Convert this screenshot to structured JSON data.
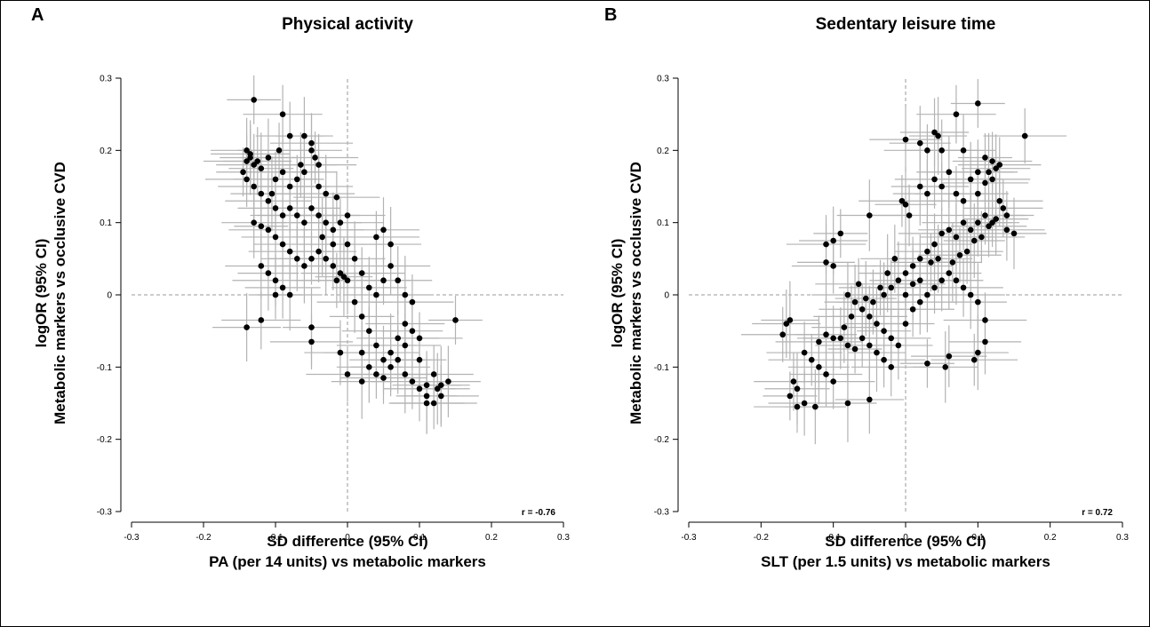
{
  "chart_data": [
    {
      "type": "scatter",
      "panel": "A",
      "title": "Physical activity",
      "xlabel": [
        "SD difference (95% CI)",
        "PA (per 14 units) vs metabolic markers"
      ],
      "ylabel": [
        "logOR (95% CI)",
        "Metabolic markers vs occlusive CVD"
      ],
      "xlim": [
        -0.3,
        0.3
      ],
      "ylim": [
        -0.3,
        0.3
      ],
      "xticks": [
        "-0.3",
        "-0.2",
        "-0.1",
        "0",
        "0.1",
        "0.2",
        "0.3"
      ],
      "yticks": [
        "-0.3",
        "-0.2",
        "-0.1",
        "0",
        "0.1",
        "0.2",
        "0.3"
      ],
      "reference_lines": {
        "x": 0,
        "y": 0,
        "style": "dashed"
      },
      "correlation": "r = -0.76",
      "error_bars": "95% CI (horizontal and vertical)",
      "marker_color": "#000000",
      "error_bar_color": "#b3b3b3",
      "points": [
        [
          -0.13,
          0.27
        ],
        [
          -0.09,
          0.25
        ],
        [
          -0.08,
          0.22
        ],
        [
          -0.06,
          0.22
        ],
        [
          -0.05,
          0.21
        ],
        [
          -0.14,
          0.2
        ],
        [
          -0.135,
          0.19
        ],
        [
          -0.14,
          0.185
        ],
        [
          -0.13,
          0.18
        ],
        [
          -0.12,
          0.175
        ],
        [
          -0.145,
          0.17
        ],
        [
          -0.135,
          0.195
        ],
        [
          -0.125,
          0.185
        ],
        [
          -0.11,
          0.19
        ],
        [
          -0.1,
          0.16
        ],
        [
          -0.09,
          0.17
        ],
        [
          -0.05,
          0.2
        ],
        [
          -0.045,
          0.19
        ],
        [
          -0.04,
          0.18
        ],
        [
          -0.06,
          0.17
        ],
        [
          -0.07,
          0.16
        ],
        [
          -0.08,
          0.15
        ],
        [
          -0.04,
          0.15
        ],
        [
          -0.03,
          0.14
        ],
        [
          -0.14,
          0.16
        ],
        [
          -0.13,
          0.15
        ],
        [
          -0.12,
          0.14
        ],
        [
          -0.11,
          0.13
        ],
        [
          -0.1,
          0.12
        ],
        [
          -0.09,
          0.11
        ],
        [
          -0.08,
          0.12
        ],
        [
          -0.07,
          0.11
        ],
        [
          -0.06,
          0.1
        ],
        [
          -0.05,
          0.12
        ],
        [
          -0.04,
          0.11
        ],
        [
          -0.03,
          0.1
        ],
        [
          -0.02,
          0.09
        ],
        [
          -0.01,
          0.1
        ],
        [
          0.0,
          0.11
        ],
        [
          -0.13,
          0.1
        ],
        [
          -0.12,
          0.095
        ],
        [
          -0.11,
          0.09
        ],
        [
          -0.1,
          0.08
        ],
        [
          -0.09,
          0.07
        ],
        [
          -0.08,
          0.06
        ],
        [
          -0.07,
          0.05
        ],
        [
          -0.06,
          0.04
        ],
        [
          -0.05,
          0.05
        ],
        [
          -0.04,
          0.06
        ],
        [
          -0.03,
          0.05
        ],
        [
          -0.02,
          0.04
        ],
        [
          -0.01,
          0.03
        ],
        [
          0.0,
          0.02
        ],
        [
          -0.005,
          0.025
        ],
        [
          -0.015,
          0.02
        ],
        [
          -0.12,
          0.04
        ],
        [
          -0.11,
          0.03
        ],
        [
          -0.1,
          0.02
        ],
        [
          -0.09,
          0.01
        ],
        [
          -0.08,
          0.0
        ],
        [
          -0.1,
          0.0
        ],
        [
          -0.12,
          -0.035
        ],
        [
          -0.14,
          -0.045
        ],
        [
          -0.05,
          -0.045
        ],
        [
          -0.05,
          -0.065
        ],
        [
          0.0,
          0.07
        ],
        [
          0.01,
          0.05
        ],
        [
          0.02,
          0.03
        ],
        [
          0.03,
          0.01
        ],
        [
          0.04,
          0.0
        ],
        [
          0.05,
          0.02
        ],
        [
          0.06,
          0.04
        ],
        [
          0.07,
          0.02
        ],
        [
          0.08,
          0.0
        ],
        [
          0.09,
          -0.01
        ],
        [
          0.05,
          0.09
        ],
        [
          0.06,
          0.07
        ],
        [
          0.04,
          0.08
        ],
        [
          0.01,
          -0.01
        ],
        [
          0.02,
          -0.03
        ],
        [
          0.03,
          -0.05
        ],
        [
          0.04,
          -0.07
        ],
        [
          0.05,
          -0.09
        ],
        [
          0.06,
          -0.08
        ],
        [
          0.07,
          -0.06
        ],
        [
          0.08,
          -0.07
        ],
        [
          0.09,
          -0.05
        ],
        [
          0.1,
          -0.06
        ],
        [
          0.02,
          -0.08
        ],
        [
          0.03,
          -0.1
        ],
        [
          0.04,
          -0.11
        ],
        [
          0.06,
          -0.1
        ],
        [
          0.07,
          -0.09
        ],
        [
          0.08,
          -0.11
        ],
        [
          0.09,
          -0.12
        ],
        [
          0.1,
          -0.13
        ],
        [
          0.11,
          -0.14
        ],
        [
          0.12,
          -0.15
        ],
        [
          0.13,
          -0.14
        ],
        [
          0.14,
          -0.12
        ],
        [
          0.15,
          -0.035
        ],
        [
          0.12,
          -0.11
        ],
        [
          0.11,
          -0.125
        ],
        [
          0.13,
          -0.125
        ],
        [
          0.0,
          -0.11
        ],
        [
          -0.01,
          -0.08
        ],
        [
          0.02,
          -0.12
        ],
        [
          0.05,
          -0.115
        ],
        [
          0.11,
          -0.15
        ],
        [
          0.125,
          -0.13
        ],
        [
          0.1,
          -0.09
        ],
        [
          0.08,
          -0.04
        ],
        [
          -0.02,
          0.07
        ],
        [
          -0.035,
          0.08
        ],
        [
          -0.095,
          0.2
        ],
        [
          -0.065,
          0.18
        ],
        [
          -0.105,
          0.14
        ],
        [
          -0.015,
          0.135
        ]
      ]
    },
    {
      "type": "scatter",
      "panel": "B",
      "title": "Sedentary leisure time",
      "xlabel": [
        "SD difference (95% CI)",
        "SLT (per 1.5 units) vs metabolic markers"
      ],
      "ylabel": [
        "logOR (95% CI)",
        "Metabolic markers vs occlusive CVD"
      ],
      "xlim": [
        -0.3,
        0.3
      ],
      "ylim": [
        -0.3,
        0.3
      ],
      "xticks": [
        "-0.3",
        "-0.2",
        "-0.1",
        "0",
        "0.1",
        "0.2",
        "0.3"
      ],
      "yticks": [
        "-0.3",
        "-0.2",
        "-0.1",
        "0",
        "0.1",
        "0.2",
        "0.3"
      ],
      "reference_lines": {
        "x": 0,
        "y": 0,
        "style": "dashed"
      },
      "correlation": "r = 0.72",
      "error_bars": "95% CI (horizontal and vertical)",
      "marker_color": "#000000",
      "error_bar_color": "#b3b3b3",
      "points": [
        [
          0.1,
          0.265
        ],
        [
          0.07,
          0.25
        ],
        [
          0.04,
          0.225
        ],
        [
          0.045,
          0.22
        ],
        [
          0.165,
          0.22
        ],
        [
          0.0,
          0.215
        ],
        [
          0.02,
          0.21
        ],
        [
          0.03,
          0.2
        ],
        [
          0.05,
          0.2
        ],
        [
          0.08,
          0.2
        ],
        [
          0.11,
          0.19
        ],
        [
          0.12,
          0.185
        ],
        [
          0.125,
          0.175
        ],
        [
          0.115,
          0.17
        ],
        [
          0.13,
          0.18
        ],
        [
          0.1,
          0.17
        ],
        [
          0.09,
          0.16
        ],
        [
          0.11,
          0.155
        ],
        [
          0.12,
          0.16
        ],
        [
          0.06,
          0.17
        ],
        [
          0.05,
          0.15
        ],
        [
          0.04,
          0.16
        ],
        [
          0.03,
          0.14
        ],
        [
          0.02,
          0.15
        ],
        [
          0.07,
          0.14
        ],
        [
          0.08,
          0.13
        ],
        [
          0.1,
          0.14
        ],
        [
          0.13,
          0.13
        ],
        [
          0.14,
          0.09
        ],
        [
          0.15,
          0.085
        ],
        [
          0.12,
          0.1
        ],
        [
          0.11,
          0.11
        ],
        [
          0.1,
          0.1
        ],
        [
          0.09,
          0.09
        ],
        [
          0.08,
          0.1
        ],
        [
          0.07,
          0.08
        ],
        [
          0.06,
          0.09
        ],
        [
          0.05,
          0.085
        ],
        [
          0.04,
          0.07
        ],
        [
          0.03,
          0.06
        ],
        [
          0.02,
          0.05
        ],
        [
          0.01,
          0.04
        ],
        [
          0.0,
          0.03
        ],
        [
          -0.01,
          0.02
        ],
        [
          -0.02,
          0.01
        ],
        [
          -0.03,
          0.0
        ],
        [
          0.0,
          0.125
        ],
        [
          -0.005,
          0.13
        ],
        [
          0.005,
          0.11
        ],
        [
          -0.05,
          0.11
        ],
        [
          -0.09,
          0.085
        ],
        [
          -0.11,
          0.07
        ],
        [
          -0.1,
          0.075
        ],
        [
          -0.11,
          0.045
        ],
        [
          -0.1,
          0.04
        ],
        [
          -0.08,
          0.0
        ],
        [
          -0.07,
          -0.01
        ],
        [
          -0.06,
          -0.02
        ],
        [
          -0.05,
          -0.03
        ],
        [
          -0.04,
          -0.04
        ],
        [
          -0.03,
          -0.05
        ],
        [
          -0.02,
          -0.06
        ],
        [
          -0.01,
          -0.07
        ],
        [
          0.0,
          -0.04
        ],
        [
          0.01,
          -0.02
        ],
        [
          0.02,
          -0.01
        ],
        [
          0.03,
          0.0
        ],
        [
          0.04,
          0.01
        ],
        [
          0.05,
          0.02
        ],
        [
          0.06,
          0.03
        ],
        [
          0.07,
          0.02
        ],
        [
          0.08,
          0.01
        ],
        [
          0.09,
          0.0
        ],
        [
          0.1,
          -0.01
        ],
        [
          0.11,
          -0.035
        ],
        [
          0.11,
          -0.065
        ],
        [
          0.1,
          -0.08
        ],
        [
          0.095,
          -0.09
        ],
        [
          0.06,
          -0.085
        ],
        [
          0.055,
          -0.1
        ],
        [
          0.03,
          -0.095
        ],
        [
          -0.02,
          -0.1
        ],
        [
          -0.05,
          -0.145
        ],
        [
          -0.08,
          -0.15
        ],
        [
          -0.1,
          -0.12
        ],
        [
          -0.11,
          -0.11
        ],
        [
          -0.12,
          -0.1
        ],
        [
          -0.13,
          -0.09
        ],
        [
          -0.14,
          -0.08
        ],
        [
          -0.15,
          -0.13
        ],
        [
          -0.16,
          -0.14
        ],
        [
          -0.155,
          -0.12
        ],
        [
          -0.165,
          -0.04
        ],
        [
          -0.16,
          -0.035
        ],
        [
          -0.17,
          -0.055
        ],
        [
          -0.14,
          -0.15
        ],
        [
          -0.125,
          -0.155
        ],
        [
          -0.15,
          -0.155
        ],
        [
          -0.09,
          -0.06
        ],
        [
          -0.08,
          -0.07
        ],
        [
          -0.07,
          -0.075
        ],
        [
          -0.06,
          -0.06
        ],
        [
          -0.05,
          -0.07
        ],
        [
          -0.04,
          -0.08
        ],
        [
          -0.03,
          -0.09
        ],
        [
          -0.1,
          -0.06
        ],
        [
          -0.11,
          -0.055
        ],
        [
          -0.12,
          -0.065
        ],
        [
          0.0,
          0.0
        ],
        [
          0.01,
          0.015
        ],
        [
          0.02,
          0.02
        ],
        [
          0.035,
          0.045
        ],
        [
          0.045,
          0.05
        ],
        [
          0.065,
          0.045
        ],
        [
          0.075,
          0.055
        ],
        [
          0.085,
          0.06
        ],
        [
          0.095,
          0.075
        ],
        [
          0.105,
          0.08
        ],
        [
          0.115,
          0.095
        ],
        [
          0.125,
          0.105
        ],
        [
          0.14,
          0.11
        ],
        [
          0.135,
          0.12
        ],
        [
          -0.015,
          0.05
        ],
        [
          -0.025,
          0.03
        ],
        [
          -0.035,
          0.01
        ],
        [
          -0.045,
          -0.01
        ],
        [
          -0.055,
          -0.005
        ],
        [
          -0.065,
          0.015
        ],
        [
          -0.075,
          -0.03
        ],
        [
          -0.085,
          -0.045
        ]
      ]
    }
  ]
}
